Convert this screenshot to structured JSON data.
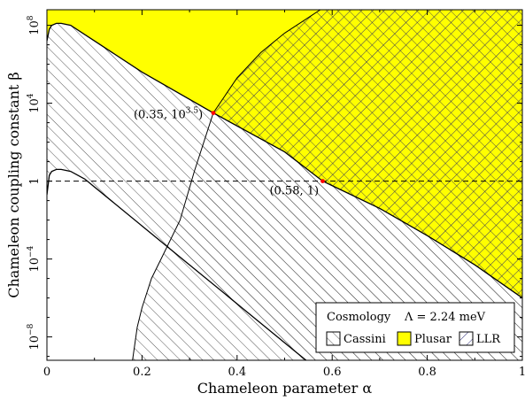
{
  "chart_data": {
    "type": "area",
    "xlabel": "Chameleon parameter α",
    "ylabel": "Chameleon coupling constant β",
    "xlim": [
      0,
      1
    ],
    "ylim_log10": [
      -9.2,
      8.8
    ],
    "y_log_scale": true,
    "grid": false,
    "x_ticks": [
      0,
      0.2,
      0.4,
      0.6,
      0.8,
      1
    ],
    "x_tick_labels": [
      "0",
      "0.2",
      "0.4",
      "0.6",
      "0.8",
      "1"
    ],
    "y_ticks_log10": [
      -8,
      -4,
      0,
      4,
      8
    ],
    "y_tick_labels": [
      {
        "base": "10",
        "exp": "−8"
      },
      {
        "base": "10",
        "exp": "−4"
      },
      {
        "base": "1",
        "exp": ""
      },
      {
        "base": "10",
        "exp": "4"
      },
      {
        "base": "10",
        "exp": "8"
      }
    ],
    "reference_line": {
      "y": 1,
      "style": "dashed"
    },
    "constraints": [
      {
        "name": "Cassini",
        "fill": "hatch-forward",
        "lower_boundary_log10": [
          [
            0,
            -0.7
          ],
          [
            0.005,
            0.3
          ],
          [
            0.01,
            0.5
          ],
          [
            0.02,
            0.6
          ],
          [
            0.03,
            0.6
          ],
          [
            0.05,
            0.5
          ],
          [
            0.08,
            0.1
          ],
          [
            0.1,
            -0.3
          ],
          [
            0.2,
            -2.3
          ],
          [
            0.3,
            -4.3
          ],
          [
            0.4,
            -6.3
          ],
          [
            0.5,
            -8.3
          ],
          [
            0.545,
            -9.2
          ]
        ]
      },
      {
        "name": "Plusar",
        "fill": "#ffff00",
        "lower_boundary_log10": [
          [
            0,
            7.2
          ],
          [
            0.005,
            7.8
          ],
          [
            0.01,
            8.0
          ],
          [
            0.02,
            8.1
          ],
          [
            0.03,
            8.1
          ],
          [
            0.05,
            8.0
          ],
          [
            0.1,
            7.2
          ],
          [
            0.2,
            5.6
          ],
          [
            0.35,
            3.5
          ],
          [
            0.5,
            1.5
          ],
          [
            0.58,
            0.0
          ],
          [
            0.7,
            -1.4
          ],
          [
            0.8,
            -2.8
          ],
          [
            0.9,
            -4.3
          ],
          [
            1.0,
            -6.0
          ]
        ]
      },
      {
        "name": "LLR",
        "fill": "hatch-backward",
        "boundary_log10": [
          [
            0.18,
            -9.2
          ],
          [
            0.19,
            -7.5
          ],
          [
            0.2,
            -6.5
          ],
          [
            0.22,
            -5.0
          ],
          [
            0.25,
            -3.5
          ],
          [
            0.28,
            -2.0
          ],
          [
            0.31,
            0.5
          ],
          [
            0.35,
            3.5
          ],
          [
            0.4,
            5.3
          ],
          [
            0.45,
            6.6
          ],
          [
            0.5,
            7.6
          ],
          [
            0.55,
            8.4
          ],
          [
            0.575,
            8.8
          ]
        ]
      }
    ],
    "intersection_points": [
      {
        "x": 0.35,
        "y_log10": 3.5,
        "label": "(0.35, 10",
        "label_exp": "3.5",
        "label_close": ")"
      },
      {
        "x": 0.58,
        "y_log10": 0,
        "label": "(0.58, 1)",
        "label_exp": "",
        "label_close": ""
      }
    ],
    "legend": {
      "placement": "bottom-right",
      "title_left": "Cosmology",
      "title_right": "Λ = 2.24  meV",
      "entries": [
        {
          "label": "Cassini",
          "swatch": "hatch-forward"
        },
        {
          "label": "Plusar",
          "swatch": "#ffff00"
        },
        {
          "label": "LLR",
          "swatch": "hatch-backward"
        }
      ]
    },
    "colors": {
      "plusar_fill": "#ffff00",
      "llr_hatch": "#1a1a6e",
      "cassini_hatch": "#444444",
      "point_marker": "#ff0000"
    }
  }
}
